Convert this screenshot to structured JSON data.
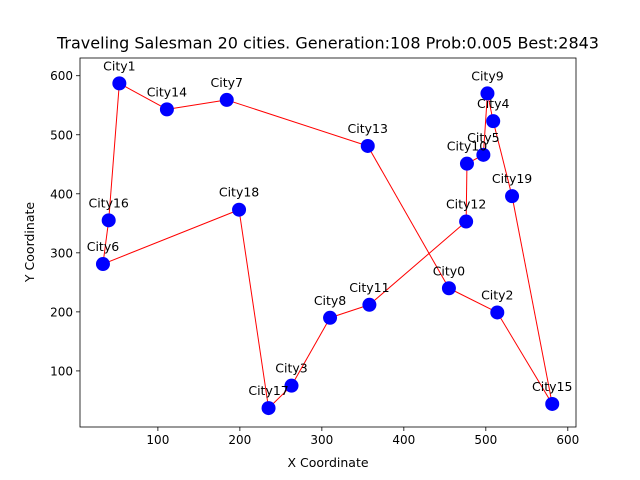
{
  "chart_data": {
    "type": "scatter",
    "title": "Traveling Salesman 20 cities. Generation:108 Prob:0.005 Best:2843",
    "xlabel": "X Coordinate",
    "ylabel": "Y Coordinate",
    "xlim": [
      5,
      610
    ],
    "ylim": [
      5,
      630
    ],
    "xticks": [
      100,
      200,
      300,
      400,
      500,
      600
    ],
    "yticks": [
      100,
      200,
      300,
      400,
      500,
      600
    ],
    "grid": false,
    "marker_color": "#0000ff",
    "route_color": "#ff0000",
    "cities": [
      {
        "name": "City0",
        "x": 455,
        "y": 240
      },
      {
        "name": "City1",
        "x": 53,
        "y": 587
      },
      {
        "name": "City2",
        "x": 514,
        "y": 199
      },
      {
        "name": "City3",
        "x": 263,
        "y": 75
      },
      {
        "name": "City4",
        "x": 509,
        "y": 523
      },
      {
        "name": "City5",
        "x": 497,
        "y": 466
      },
      {
        "name": "City6",
        "x": 33,
        "y": 281
      },
      {
        "name": "City7",
        "x": 184,
        "y": 559
      },
      {
        "name": "City8",
        "x": 310,
        "y": 190
      },
      {
        "name": "City9",
        "x": 502,
        "y": 570
      },
      {
        "name": "City10",
        "x": 477,
        "y": 451
      },
      {
        "name": "City11",
        "x": 358,
        "y": 212
      },
      {
        "name": "City12",
        "x": 476,
        "y": 353
      },
      {
        "name": "City13",
        "x": 356,
        "y": 481
      },
      {
        "name": "City14",
        "x": 111,
        "y": 543
      },
      {
        "name": "City15",
        "x": 581,
        "y": 44
      },
      {
        "name": "City16",
        "x": 40,
        "y": 355
      },
      {
        "name": "City17",
        "x": 235,
        "y": 37
      },
      {
        "name": "City18",
        "x": 199,
        "y": 373
      },
      {
        "name": "City19",
        "x": 532,
        "y": 396
      }
    ],
    "route": [
      "City6",
      "City16",
      "City1",
      "City14",
      "City7",
      "City13",
      "City0",
      "City2",
      "City15",
      "City19",
      "City4",
      "City9",
      "City5",
      "City10",
      "City12",
      "City11",
      "City8",
      "City3",
      "City17",
      "City18",
      "City6"
    ]
  }
}
